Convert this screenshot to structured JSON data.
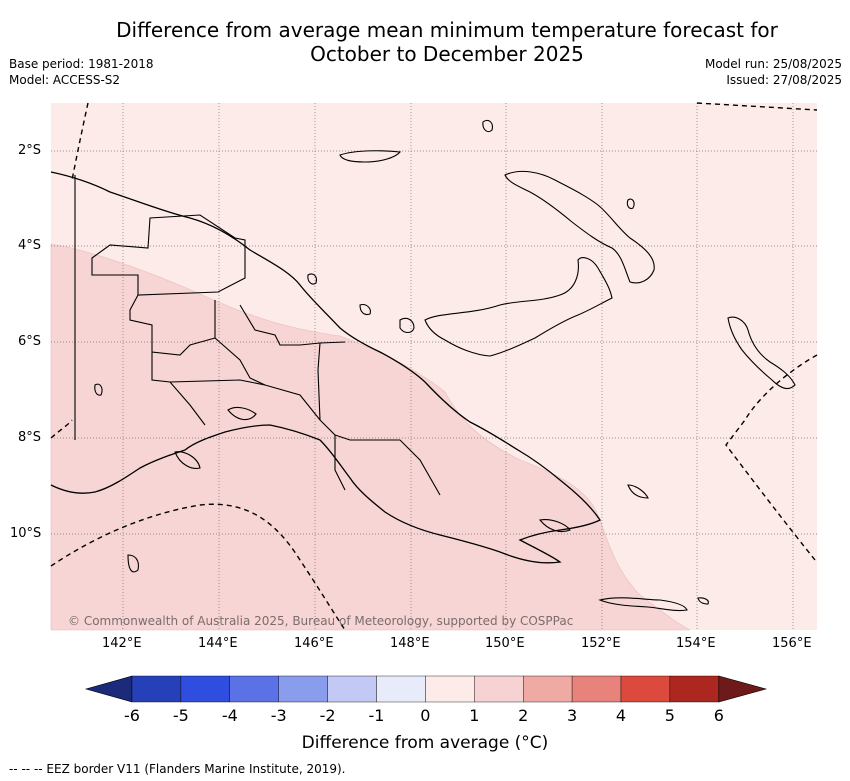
{
  "title": "Difference from average mean minimum temperature forecast for October to December 2025",
  "base_period": "Base period: 1981-2018",
  "model": "Model: ACCESS-S2",
  "model_run": "Model run: 25/08/2025",
  "issued": "Issued: 27/08/2025",
  "lat_labels": [
    "2°S",
    "4°S",
    "6°S",
    "8°S",
    "10°S"
  ],
  "lon_labels": [
    "142°E",
    "144°E",
    "146°E",
    "148°E",
    "150°E",
    "152°E",
    "154°E",
    "156°E"
  ],
  "copyright": "© Commonwealth of Australia 2025, Bureau of Meteorology, supported by COSPPac",
  "colorbar": {
    "ticks": [
      "-6",
      "-5",
      "-4",
      "-3",
      "-2",
      "-1",
      "0",
      "1",
      "2",
      "3",
      "4",
      "5",
      "6"
    ],
    "label": "Difference from average (°C)",
    "colors": [
      "#1b2a7a",
      "#2540b8",
      "#2f4ee0",
      "#5a72e6",
      "#8a9cec",
      "#c2c9f5",
      "#e8ebfa",
      "#fcebe9",
      "#f6d3d2",
      "#f0aaa4",
      "#e8837c",
      "#dc4a3e",
      "#ad2721",
      "#6e1a1a"
    ]
  },
  "zones": {
    "light_fill": "#fcebe9",
    "medium_fill": "#f6d5d4"
  },
  "footnote": "-- -- -- EEZ border V11 (Flanders Marine Institute, 2019)."
}
